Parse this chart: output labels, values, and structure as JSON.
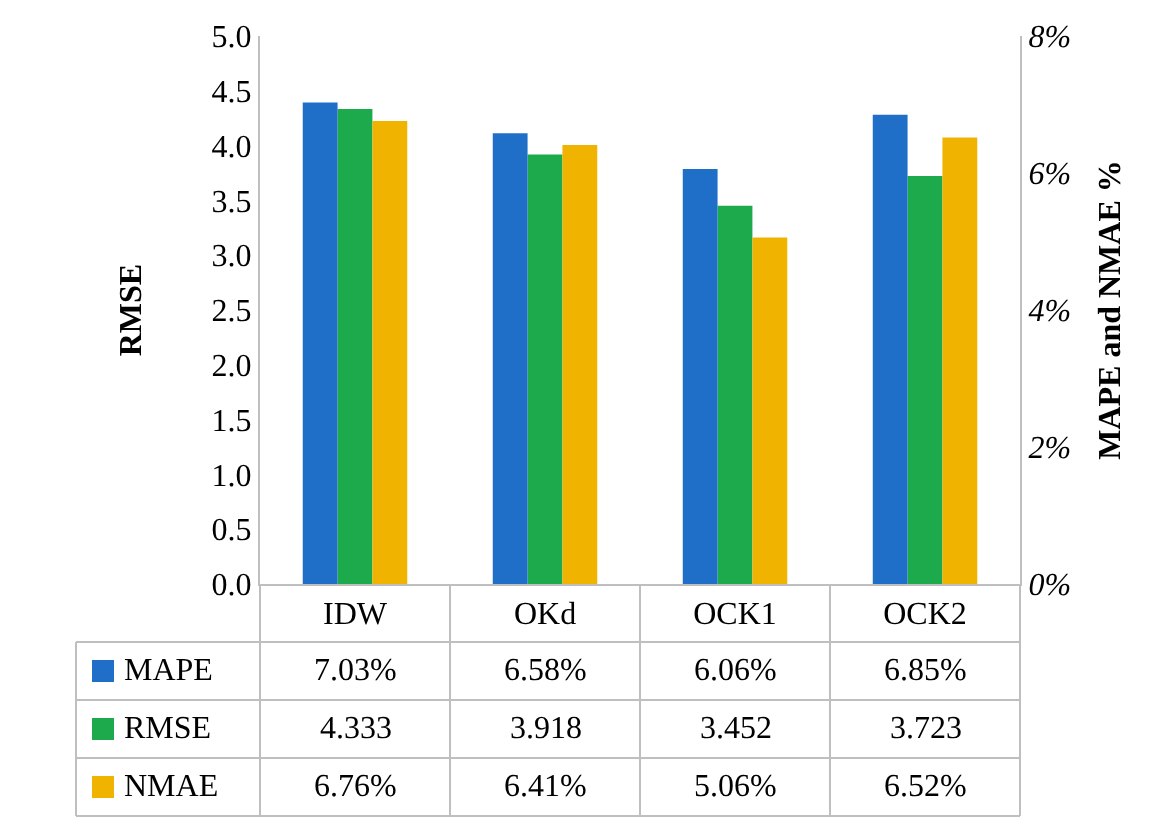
{
  "chart_data": {
    "type": "bar",
    "categories": [
      "IDW",
      "OKd",
      "OCK1",
      "OCK2"
    ],
    "ylabel": "RMSE",
    "y2label": "MAPE and NMAE %",
    "ylim": [
      0,
      5
    ],
    "yticks": [
      {
        "value": 0,
        "label": "0.0"
      },
      0.5,
      {
        "value": 1,
        "label": "1.0"
      },
      1.5,
      {
        "value": 2,
        "label": "2.0"
      },
      2.5,
      {
        "value": 3,
        "label": "3.0"
      },
      3.5,
      {
        "value": 4,
        "label": "4.0"
      },
      4.5,
      {
        "value": 5,
        "label": "5.0"
      }
    ],
    "y2lim": [
      0,
      8
    ],
    "y2ticks": [
      {
        "value": 0,
        "label": "0%"
      },
      {
        "value": 2,
        "label": "2%"
      },
      {
        "value": 4,
        "label": "4%"
      },
      {
        "value": 6,
        "label": "6%"
      },
      {
        "value": 8,
        "label": "8%"
      }
    ],
    "series": [
      {
        "name": "MAPE",
        "color": "#1f6fc8",
        "axis": "y2",
        "values": [
          7.03,
          6.58,
          6.06,
          6.85
        ],
        "value_labels": [
          "7.03%",
          "6.58%",
          "6.06%",
          "6.85%"
        ]
      },
      {
        "name": "RMSE",
        "color": "#1daa4c",
        "axis": "y",
        "values": [
          4.333,
          3.918,
          3.452,
          3.723
        ],
        "value_labels": [
          "4.333",
          "3.918",
          "3.452",
          "3.723"
        ]
      },
      {
        "name": "NMAE",
        "color": "#f0b400",
        "axis": "y2",
        "values": [
          6.76,
          6.41,
          5.06,
          6.52
        ],
        "value_labels": [
          "6.76%",
          "6.41%",
          "5.06%",
          "6.52%"
        ]
      }
    ],
    "legend": "bottom",
    "grid": false
  }
}
